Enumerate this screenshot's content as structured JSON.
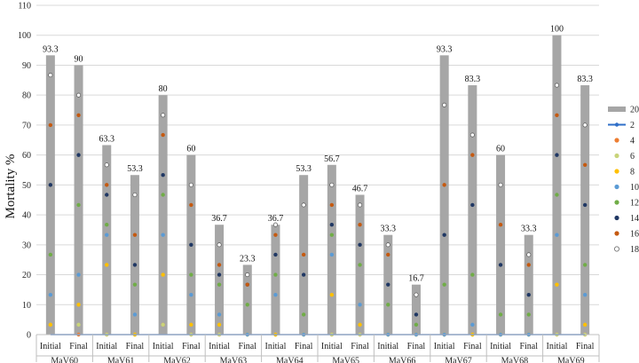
{
  "chart_data": {
    "type": "bar",
    "xlabel": "",
    "ylabel": "Mortality %",
    "ylim": [
      0,
      110
    ],
    "yticks": [
      0,
      10,
      20,
      30,
      40,
      50,
      60,
      70,
      80,
      90,
      100,
      110
    ],
    "grid": true,
    "legend_position": "right",
    "groups": [
      "MaV60",
      "MaV61",
      "MaV62",
      "MaV63",
      "MaV64",
      "MaV65",
      "MaV66",
      "MaV67",
      "MaV68",
      "MaV69"
    ],
    "categories": [
      "Initial",
      "Final"
    ],
    "bar_series": {
      "name": "20",
      "color": "#a6a6a6",
      "values": [
        93.3,
        90,
        63.3,
        53.3,
        80,
        60,
        36.7,
        23.3,
        36.7,
        53.3,
        56.7,
        46.7,
        33.3,
        16.7,
        93.3,
        83.3,
        60,
        33.3,
        100,
        83.3
      ],
      "labels": [
        "93.3",
        "90",
        "63.3",
        "53.3",
        "80",
        "60",
        "36.7",
        "23.3",
        "36.7",
        "53.3",
        "56.7",
        "46.7",
        "33.3",
        "16.7",
        "93.3",
        "83.3",
        "60",
        "33.3",
        "100",
        "83.3"
      ]
    },
    "line_series": {
      "name": "2",
      "color": "#2f6fc8",
      "values": [
        0,
        0,
        0,
        0,
        0,
        0,
        0,
        0,
        0,
        0,
        0,
        0,
        0,
        0,
        0,
        0,
        0,
        0,
        0,
        0
      ]
    },
    "point_series": [
      {
        "name": "4",
        "color": "#ed7d31",
        "values": [
          3.3,
          0,
          0,
          0,
          3.3,
          0,
          0,
          0,
          0,
          0,
          0,
          0,
          0,
          0,
          0,
          0,
          0,
          0,
          0,
          0
        ]
      },
      {
        "name": "6",
        "color": "#c9d47a",
        "values": [
          3.3,
          3.3,
          0,
          0,
          3.3,
          0,
          0,
          0,
          0,
          0,
          0,
          0,
          0,
          0,
          0,
          0,
          0,
          0,
          0,
          0
        ]
      },
      {
        "name": "8",
        "color": "#ffc000",
        "values": [
          3.3,
          10,
          23.3,
          0,
          20,
          3.3,
          3.3,
          0,
          0,
          0,
          13.3,
          3.3,
          0,
          0,
          0,
          0,
          0,
          0,
          16.7,
          3.3
        ]
      },
      {
        "name": "10",
        "color": "#5b9bd5",
        "values": [
          13.3,
          20,
          33.3,
          6.7,
          33.3,
          13.3,
          6.7,
          0,
          13.3,
          0,
          26.7,
          10,
          0,
          0,
          0,
          3.3,
          0,
          0,
          33.3,
          13.3
        ]
      },
      {
        "name": "12",
        "color": "#70ad47",
        "values": [
          26.7,
          43.3,
          36.7,
          16.7,
          46.7,
          20,
          16.7,
          10,
          20,
          6.7,
          33.3,
          23.3,
          10,
          3.3,
          16.7,
          20,
          6.7,
          6.7,
          46.7,
          23.3
        ]
      },
      {
        "name": "14",
        "color": "#203864",
        "values": [
          50,
          60,
          46.7,
          23.3,
          53.3,
          30,
          20,
          16.7,
          26.7,
          20,
          36.7,
          30,
          16.7,
          6.7,
          33.3,
          43.3,
          23.3,
          13.3,
          60,
          43.3
        ]
      },
      {
        "name": "16",
        "color": "#c55a11",
        "values": [
          70,
          73.3,
          50,
          33.3,
          66.7,
          43.3,
          23.3,
          16.7,
          33.3,
          26.7,
          43.3,
          36.7,
          26.7,
          13.3,
          50,
          60,
          36.7,
          23.3,
          73.3,
          56.7
        ]
      },
      {
        "name": "18",
        "color": "#ffffff",
        "values": [
          86.7,
          80,
          56.7,
          46.7,
          73.3,
          50,
          30,
          20,
          36.7,
          43.3,
          50,
          43.3,
          30,
          13.3,
          76.7,
          66.7,
          50,
          26.7,
          83.3,
          70
        ]
      }
    ]
  }
}
